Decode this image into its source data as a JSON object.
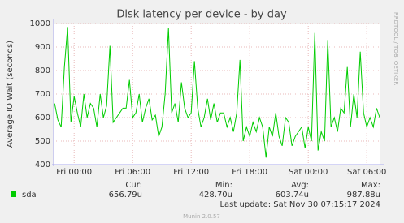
{
  "chart_data": {
    "type": "line",
    "title": "Disk latency per device - by day",
    "y_label": "Average IO Wait (seconds)",
    "side_label": "RRDTOOL / TOBI OETIKER",
    "x": [
      -2,
      -1.67,
      -1.33,
      -1,
      -0.67,
      -0.33,
      0,
      0.33,
      0.67,
      1,
      1.33,
      1.67,
      2,
      2.33,
      2.67,
      3,
      3.33,
      3.67,
      4,
      4.33,
      4.67,
      5,
      5.33,
      5.67,
      6,
      6.33,
      6.67,
      7,
      7.33,
      7.67,
      8,
      8.33,
      8.67,
      9,
      9.33,
      9.67,
      10,
      10.33,
      10.67,
      11,
      11.33,
      11.67,
      12,
      12.33,
      12.67,
      13,
      13.33,
      13.67,
      14,
      14.33,
      14.67,
      15,
      15.33,
      15.67,
      16,
      16.33,
      16.67,
      17,
      17.33,
      17.67,
      18,
      18.33,
      18.67,
      19,
      19.33,
      19.67,
      20,
      20.33,
      20.67,
      21,
      21.33,
      21.67,
      22,
      22.33,
      22.67,
      23,
      23.33,
      23.67,
      24,
      24.33,
      24.67,
      25,
      25.33,
      25.67,
      26,
      26.33,
      26.67,
      27,
      27.33,
      27.67,
      28,
      28.33,
      28.67,
      29,
      29.33,
      29.67,
      30,
      30.33,
      30.67,
      31,
      31.33
    ],
    "series": [
      {
        "name": "sda",
        "color": "#00cc00",
        "values": [
          660,
          590,
          560,
          815,
          985,
          580,
          690,
          620,
          560,
          700,
          600,
          660,
          640,
          560,
          700,
          600,
          650,
          905,
          580,
          600,
          620,
          640,
          640,
          760,
          600,
          620,
          700,
          580,
          640,
          680,
          590,
          610,
          520,
          560,
          700,
          980,
          620,
          660,
          580,
          750,
          640,
          600,
          620,
          840,
          640,
          560,
          600,
          680,
          590,
          660,
          580,
          620,
          620,
          560,
          600,
          540,
          620,
          845,
          500,
          560,
          520,
          580,
          540,
          600,
          560,
          430,
          560,
          520,
          620,
          520,
          480,
          600,
          580,
          480,
          520,
          540,
          560,
          470,
          560,
          500,
          960,
          460,
          540,
          500,
          930,
          560,
          600,
          540,
          640,
          620,
          815,
          560,
          700,
          600,
          880,
          620,
          560,
          600,
          560,
          640,
          600
        ]
      }
    ],
    "xlim": [
      -2.1,
      31.4
    ],
    "xticks": [
      {
        "value": 0,
        "label": "Fri 00:00"
      },
      {
        "value": 6,
        "label": "Fri 06:00"
      },
      {
        "value": 12,
        "label": "Fri 12:00"
      },
      {
        "value": 18,
        "label": "Fri 18:00"
      },
      {
        "value": 24,
        "label": "Sat 00:00"
      },
      {
        "value": 30,
        "label": "Sat 06:00"
      }
    ],
    "ylim": [
      400,
      1000
    ],
    "yticks": [
      400,
      500,
      600,
      700,
      800,
      900,
      1000
    ],
    "grid": true,
    "stats": {
      "headers": [
        "Cur:",
        "Min:",
        "Avg:",
        "Max:"
      ],
      "values": [
        "656.79u",
        "428.70u",
        "603.74u",
        "987.88u"
      ]
    },
    "last_update": "Last update: Sat Nov 30 07:15:17 2024",
    "footer": "Munin 2.0.57"
  }
}
